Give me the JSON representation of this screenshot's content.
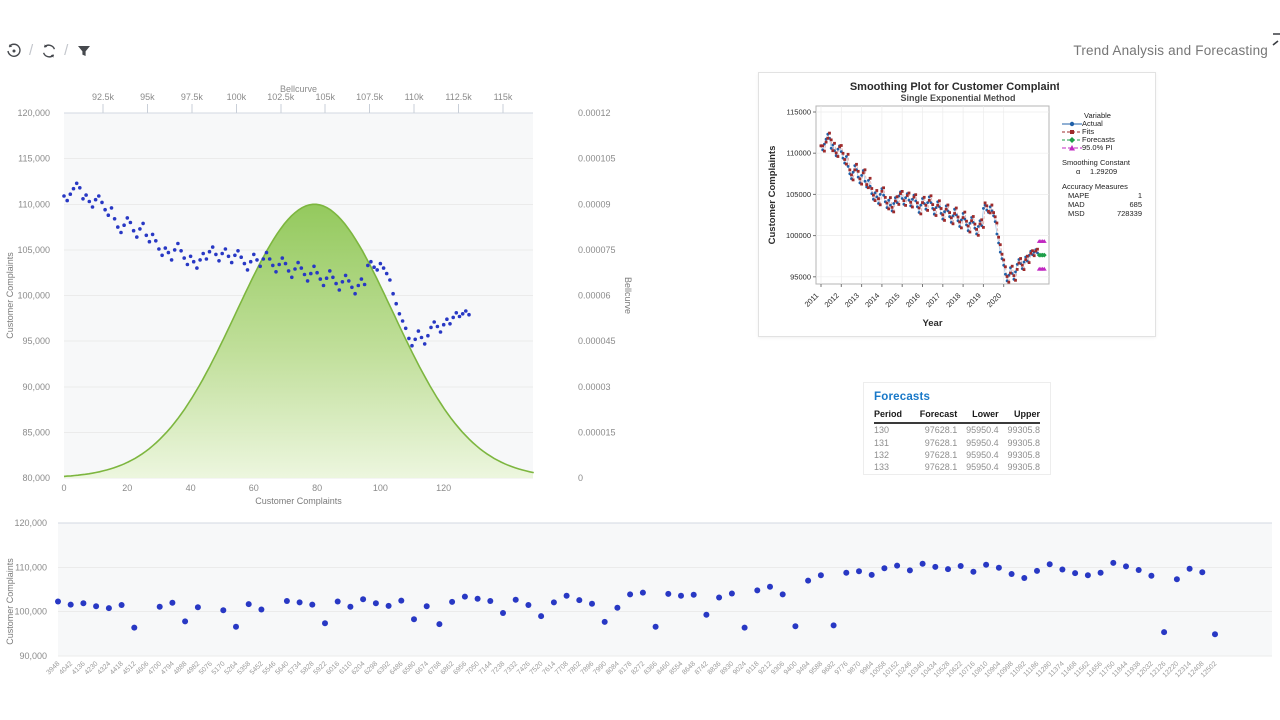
{
  "toolbar": {
    "separator": "/",
    "icons": [
      {
        "name": "history-undo-icon"
      },
      {
        "name": "refresh-icon"
      },
      {
        "name": "filter-icon"
      }
    ]
  },
  "header": {
    "title": "Trend Analysis and Forecasting"
  },
  "colors": {
    "dot_blue": "#2838c4",
    "bell_stroke": "#7db63f",
    "bell_top": "#8dc653",
    "bell_mid": "#bede96",
    "bell_bottom": "#ecf6dd",
    "grid": "#ebebeb",
    "axis_line": "#d3d9e2",
    "tick_label": "#8b8b8b",
    "axis_title": "#7b7b7b",
    "plot_bg": "#f7f8f9",
    "mt_actual": "#2060a8",
    "mt_actual_line": "#9dc3e6",
    "mt_fits": "#9e2b2b",
    "mt_forecast": "#1e9e48",
    "mt_pi": "#c128c1",
    "mt_text": "#2b2b2b",
    "forecasts_title_blue": "#1878c8"
  },
  "chart_data": [
    {
      "name": "main_chart",
      "type": "scatter+area",
      "title_top_axis": "Bellcurve",
      "left_axis": {
        "title": "Customer Complaints",
        "ticks": [
          120000,
          115000,
          110000,
          105000,
          100000,
          95000,
          90000,
          85000,
          80000
        ],
        "range": [
          80000,
          120000
        ]
      },
      "right_axis": {
        "title": "Bellcurve",
        "tick_labels": [
          "0.00012",
          "0.000105",
          "0.00009",
          "0.000075",
          "0.00006",
          "0.000045",
          "0.00003",
          "0.000015",
          "0"
        ],
        "range": [
          0,
          0.00012
        ]
      },
      "bottom_axis": {
        "title": "Customer Complaints",
        "ticks": [
          0,
          20,
          40,
          60,
          80,
          100,
          120
        ],
        "range": [
          0,
          129
        ]
      },
      "top_axis": {
        "tick_labels": [
          "92.5k",
          "95k",
          "97.5k",
          "100k",
          "102.5k",
          "105k",
          "107.5k",
          "110k",
          "112.5k",
          "115k"
        ],
        "tick_values": [
          92500,
          95000,
          97500,
          100000,
          102500,
          105000,
          107500,
          110000,
          112500,
          115000
        ]
      },
      "bellcurve": {
        "mean": 104400,
        "sd": 4400,
        "peak": 9e-05
      },
      "series": [
        110900,
        110400,
        111100,
        111700,
        112300,
        111800,
        110600,
        111000,
        110300,
        109700,
        110500,
        110900,
        110200,
        109400,
        108800,
        109600,
        108400,
        107500,
        106900,
        107700,
        108500,
        108000,
        107100,
        106400,
        107300,
        107900,
        106600,
        105900,
        106700,
        106000,
        105100,
        104400,
        105200,
        104700,
        103900,
        105000,
        105700,
        104900,
        104100,
        103400,
        104300,
        103700,
        103000,
        103900,
        104600,
        104000,
        104800,
        105300,
        104500,
        103800,
        104600,
        105100,
        104300,
        103600,
        104400,
        104900,
        104200,
        103500,
        102800,
        103700,
        104500,
        103900,
        103200,
        104000,
        104700,
        104000,
        103300,
        102600,
        103400,
        104100,
        103500,
        102700,
        102000,
        102900,
        103600,
        103000,
        102300,
        101600,
        102400,
        103200,
        102500,
        101800,
        101100,
        101900,
        102700,
        102000,
        101300,
        100600,
        101500,
        102200,
        101600,
        100900,
        100200,
        101100,
        101800,
        101200,
        103300,
        103700,
        103100,
        102800,
        103500,
        103000,
        102400,
        101700,
        100200,
        99100,
        98000,
        97200,
        96400,
        95300,
        94500,
        95200,
        96100,
        95400,
        94700,
        95600,
        96500,
        97100,
        96600,
        96000,
        96800,
        97400,
        96900,
        97600,
        98100,
        97700,
        98000,
        98300,
        97900
      ]
    },
    {
      "name": "smoothing_plot",
      "type": "line",
      "title": "Smoothing Plot for Customer Complaints",
      "subtitle": "Single Exponential Method",
      "ylabel": "Customer Complaints",
      "xlabel": "Year",
      "y_ticks": [
        115000,
        110000,
        105000,
        100000,
        95000
      ],
      "x_tick_labels": [
        "2011",
        "2012",
        "2013",
        "2014",
        "2015",
        "2016",
        "2017",
        "2018",
        "2019",
        "2020"
      ],
      "alpha": 1.29209,
      "legend_title": "Variable",
      "legend": [
        {
          "label": "Actual",
          "marker": "circle"
        },
        {
          "label": "Fits",
          "marker": "square"
        },
        {
          "label": "Forecasts",
          "marker": "diamond"
        },
        {
          "label": "95.0% PI",
          "marker": "triangle"
        }
      ],
      "smoothing_constant_label": "Smoothing Constant",
      "alpha_label": "α",
      "alpha_value": "1.29209",
      "accuracy_label": "Accuracy Measures",
      "accuracy_rows": [
        [
          "MAPE",
          "1"
        ],
        [
          "MAD",
          "685"
        ],
        [
          "MSD",
          "728339"
        ]
      ]
    },
    {
      "name": "bottom_chart",
      "type": "scatter",
      "ylabel": "Customer Complaints",
      "y_ticks": [
        120000,
        110000,
        100000,
        90000
      ],
      "y_range": [
        90000,
        120000
      ],
      "categories": [
        "3948",
        "4042",
        "4136",
        "4230",
        "4324",
        "4418",
        "4512",
        "4606",
        "4700",
        "4794",
        "4888",
        "4982",
        "5076",
        "5170",
        "5264",
        "5358",
        "5452",
        "5546",
        "5640",
        "5734",
        "5828",
        "5922",
        "6016",
        "6110",
        "6204",
        "6298",
        "6392",
        "6486",
        "6580",
        "6674",
        "6768",
        "6862",
        "6956",
        "7050",
        "7144",
        "7238",
        "7332",
        "7426",
        "7520",
        "7614",
        "7708",
        "7802",
        "7896",
        "7990",
        "8084",
        "8178",
        "8272",
        "8366",
        "8460",
        "8554",
        "8648",
        "8742",
        "8836",
        "8930",
        "9024",
        "9118",
        "9212",
        "9306",
        "9400",
        "9494",
        "9588",
        "9682",
        "9776",
        "9870",
        "9964",
        "10058",
        "10152",
        "10246",
        "10340",
        "10434",
        "10528",
        "10622",
        "10716",
        "10810",
        "10904",
        "10998",
        "11092",
        "11186",
        "11280",
        "11374",
        "11468",
        "11562",
        "11656",
        "11750",
        "11844",
        "11938",
        "12032",
        "12126",
        "12220",
        "12314",
        "12408",
        "12502"
      ],
      "points": [
        [
          0,
          102300
        ],
        [
          1,
          101600
        ],
        [
          2,
          101900
        ],
        [
          3,
          101200
        ],
        [
          4,
          100800
        ],
        [
          5,
          101500
        ],
        [
          6,
          96400
        ],
        [
          8,
          101100
        ],
        [
          9,
          102000
        ],
        [
          10,
          97800
        ],
        [
          11,
          101000
        ],
        [
          13,
          100300
        ],
        [
          14,
          96600
        ],
        [
          15,
          101700
        ],
        [
          16,
          100500
        ],
        [
          18,
          102400
        ],
        [
          19,
          102100
        ],
        [
          20,
          101600
        ],
        [
          21,
          97400
        ],
        [
          22,
          102300
        ],
        [
          23,
          101100
        ],
        [
          24,
          102800
        ],
        [
          25,
          101900
        ],
        [
          26,
          101300
        ],
        [
          27,
          102500
        ],
        [
          28,
          98300
        ],
        [
          29,
          101200
        ],
        [
          30,
          97200
        ],
        [
          31,
          102200
        ],
        [
          32,
          103400
        ],
        [
          33,
          102900
        ],
        [
          34,
          102400
        ],
        [
          35,
          99700
        ],
        [
          36,
          102700
        ],
        [
          37,
          101500
        ],
        [
          38,
          99000
        ],
        [
          39,
          102100
        ],
        [
          40,
          103600
        ],
        [
          41,
          102600
        ],
        [
          42,
          101800
        ],
        [
          43,
          97700
        ],
        [
          44,
          100900
        ],
        [
          45,
          103900
        ],
        [
          46,
          104300
        ],
        [
          47,
          96600
        ],
        [
          48,
          104000
        ],
        [
          49,
          103600
        ],
        [
          50,
          103800
        ],
        [
          51,
          99300
        ],
        [
          52,
          103200
        ],
        [
          53,
          104100
        ],
        [
          54,
          96400
        ],
        [
          55,
          104800
        ],
        [
          56,
          105600
        ],
        [
          57,
          103900
        ],
        [
          58,
          96700
        ],
        [
          59,
          107000
        ],
        [
          60,
          108200
        ],
        [
          61,
          96900
        ],
        [
          62,
          108800
        ],
        [
          63,
          109100
        ],
        [
          64,
          108300
        ],
        [
          65,
          109800
        ],
        [
          66,
          110400
        ],
        [
          67,
          109300
        ],
        [
          68,
          110800
        ],
        [
          69,
          110100
        ],
        [
          70,
          109600
        ],
        [
          71,
          110300
        ],
        [
          72,
          109000
        ],
        [
          73,
          110600
        ],
        [
          74,
          109900
        ],
        [
          75,
          108500
        ],
        [
          76,
          107600
        ],
        [
          77,
          109200
        ],
        [
          78,
          110700
        ],
        [
          79,
          109500
        ],
        [
          80,
          108700
        ],
        [
          81,
          108200
        ],
        [
          82,
          108800
        ],
        [
          83,
          111000
        ],
        [
          84,
          110200
        ],
        [
          85,
          109400
        ],
        [
          86,
          108100
        ],
        [
          87,
          95400
        ],
        [
          88,
          107300
        ],
        [
          89,
          109700
        ],
        [
          90,
          108900
        ],
        [
          91,
          94900
        ]
      ]
    }
  ],
  "forecasts_table": {
    "title": "Forecasts",
    "headers": [
      "Period",
      "Forecast",
      "Lower",
      "Upper"
    ],
    "rows": [
      [
        "130",
        "97628.1",
        "95950.4",
        "99305.8"
      ],
      [
        "131",
        "97628.1",
        "95950.4",
        "99305.8"
      ],
      [
        "132",
        "97628.1",
        "95950.4",
        "99305.8"
      ],
      [
        "133",
        "97628.1",
        "95950.4",
        "99305.8"
      ]
    ],
    "forecast_value": 97628.1,
    "lower_value": 95950.4,
    "upper_value": 99305.8
  }
}
